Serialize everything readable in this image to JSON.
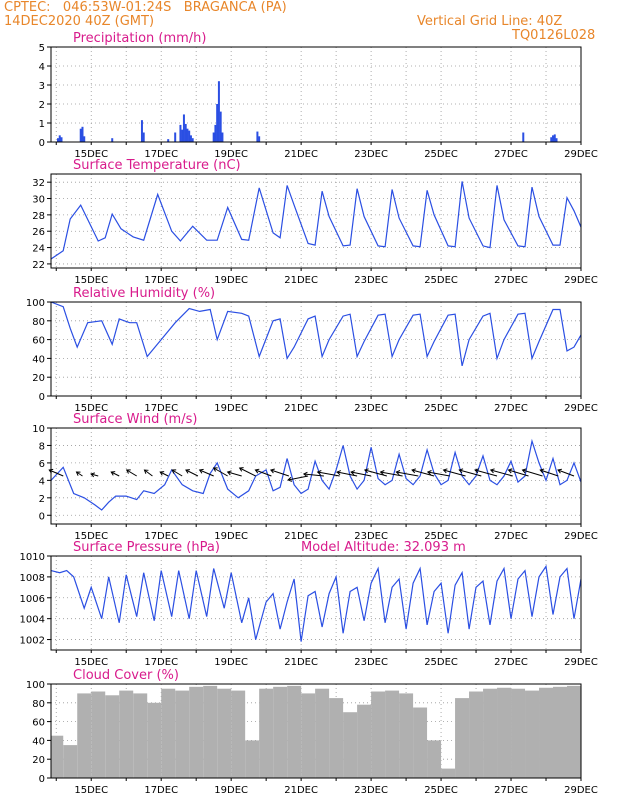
{
  "header": {
    "line1_left": "CPTEC:   046:53W-01:24S   BRAGANCA (PA)",
    "line2_left": "14DEC2020 40Z (GMT)",
    "line2_right": "Vertical Grid Line: 40Z",
    "line3_right": "TQ0126L028"
  },
  "colors": {
    "series": "#2b4fe3",
    "title": "#d81b8c",
    "header": "#e8862a",
    "cloud": "#b0b0b0"
  },
  "x_labels": [
    "15DEC",
    "17DEC",
    "19DEC",
    "21DEC",
    "23DEC",
    "25DEC",
    "27DEC",
    "29DEC"
  ],
  "chart_data": [
    {
      "type": "bar",
      "title": "Precipitation (mm/h)",
      "ylim": [
        0,
        5
      ],
      "yticks": [
        0,
        1,
        2,
        3,
        4,
        5
      ],
      "x": [
        14.05,
        14.1,
        14.15,
        14.7,
        14.75,
        14.8,
        15.6,
        16.45,
        16.5,
        17.2,
        17.4,
        17.55,
        17.6,
        17.65,
        17.7,
        17.75,
        17.8,
        17.85,
        17.9,
        18.5,
        18.55,
        18.6,
        18.65,
        18.7,
        18.75,
        19.75,
        19.8,
        27.35,
        28.15,
        28.2,
        28.25,
        28.3
      ],
      "values": [
        0.2,
        0.35,
        0.25,
        0.7,
        0.8,
        0.3,
        0.2,
        1.15,
        0.5,
        0.15,
        0.5,
        0.9,
        0.65,
        1.45,
        0.95,
        0.7,
        0.6,
        0.35,
        0.2,
        0.5,
        0.9,
        2.0,
        3.2,
        1.6,
        0.5,
        0.55,
        0.3,
        0.5,
        0.25,
        0.35,
        0.4,
        0.2
      ]
    },
    {
      "type": "line",
      "title": "Surface Temperature (nC)",
      "ylim": [
        21.5,
        33
      ],
      "yticks": [
        22,
        24,
        26,
        28,
        30,
        32
      ],
      "x": [
        13.85,
        14.2,
        14.4,
        14.7,
        15.2,
        15.4,
        15.6,
        15.85,
        16.2,
        16.5,
        16.9,
        17.3,
        17.55,
        17.9,
        18.3,
        18.6,
        18.9,
        19.3,
        19.5,
        19.8,
        20.2,
        20.4,
        20.6,
        20.8,
        21.2,
        21.4,
        21.6,
        21.8,
        22.2,
        22.4,
        22.6,
        22.8,
        23.2,
        23.4,
        23.6,
        23.8,
        24.2,
        24.4,
        24.6,
        24.8,
        25.2,
        25.4,
        25.6,
        25.8,
        26.2,
        26.4,
        26.6,
        26.8,
        27.2,
        27.4,
        27.6,
        27.8,
        28.2,
        28.4,
        28.6,
        28.8,
        29.0
      ],
      "values": [
        22.6,
        23.6,
        27.5,
        29.2,
        24.8,
        25.2,
        28.1,
        26.3,
        25.3,
        24.9,
        30.5,
        26.0,
        24.8,
        26.6,
        24.9,
        24.9,
        28.9,
        25.0,
        24.9,
        31.3,
        25.8,
        25.2,
        31.6,
        29.2,
        24.5,
        24.3,
        30.9,
        27.8,
        24.2,
        24.3,
        31.2,
        27.8,
        24.2,
        24.1,
        31.1,
        27.6,
        24.2,
        24.1,
        31.0,
        28.0,
        24.2,
        24.1,
        32.1,
        27.6,
        24.2,
        24.0,
        31.6,
        27.4,
        24.2,
        24.1,
        31.4,
        27.8,
        24.3,
        24.3,
        30.1,
        28.5,
        26.5
      ]
    },
    {
      "type": "line",
      "title": "Relative Humidity (%)",
      "ylim": [
        0,
        100
      ],
      "yticks": [
        0,
        20,
        40,
        60,
        80,
        100
      ],
      "x": [
        13.85,
        14.2,
        14.4,
        14.6,
        14.9,
        15.3,
        15.6,
        15.8,
        16.1,
        16.3,
        16.6,
        17.0,
        17.4,
        17.8,
        18.1,
        18.4,
        18.6,
        18.9,
        19.3,
        19.5,
        19.8,
        20.2,
        20.4,
        20.6,
        20.8,
        21.2,
        21.4,
        21.6,
        21.8,
        22.2,
        22.4,
        22.6,
        22.8,
        23.2,
        23.4,
        23.6,
        23.8,
        24.2,
        24.4,
        24.6,
        24.8,
        25.2,
        25.4,
        25.6,
        25.8,
        26.2,
        26.4,
        26.6,
        26.8,
        27.2,
        27.4,
        27.6,
        27.8,
        28.2,
        28.4,
        28.6,
        28.8,
        29.0
      ],
      "values": [
        100,
        95,
        72,
        52,
        78,
        80,
        55,
        82,
        78,
        78,
        42,
        60,
        78,
        93,
        90,
        92,
        60,
        90,
        88,
        85,
        42,
        80,
        82,
        40,
        52,
        82,
        85,
        42,
        60,
        85,
        87,
        42,
        58,
        86,
        87,
        42,
        60,
        86,
        87,
        42,
        58,
        86,
        87,
        32,
        60,
        85,
        88,
        40,
        60,
        87,
        88,
        40,
        58,
        92,
        92,
        48,
        52,
        65
      ]
    },
    {
      "type": "line",
      "title": "Surface Wind (m/s)",
      "ylim": [
        -1,
        10
      ],
      "yticks": [
        0,
        2,
        4,
        6,
        8,
        10
      ],
      "x": [
        13.85,
        14.2,
        14.5,
        14.8,
        15.1,
        15.3,
        15.5,
        15.7,
        16.0,
        16.3,
        16.5,
        16.8,
        17.1,
        17.3,
        17.6,
        17.9,
        18.2,
        18.4,
        18.6,
        18.9,
        19.2,
        19.5,
        19.7,
        20.0,
        20.2,
        20.4,
        20.6,
        20.8,
        21.0,
        21.2,
        21.4,
        21.6,
        21.8,
        22.0,
        22.2,
        22.4,
        22.6,
        22.8,
        23.0,
        23.2,
        23.4,
        23.6,
        23.8,
        24.0,
        24.2,
        24.4,
        24.6,
        24.8,
        25.0,
        25.2,
        25.4,
        25.6,
        25.8,
        26.0,
        26.2,
        26.4,
        26.6,
        26.8,
        27.0,
        27.2,
        27.4,
        27.6,
        27.8,
        28.0,
        28.2,
        28.4,
        28.6,
        28.8,
        29.0
      ],
      "values": [
        4,
        5.5,
        2.5,
        2.0,
        1.2,
        0.6,
        1.5,
        2.2,
        2.2,
        1.8,
        2.8,
        2.5,
        3.5,
        5.2,
        3.5,
        2.8,
        2.5,
        4.8,
        6.0,
        3.0,
        2.0,
        2.8,
        4.5,
        5.2,
        2.8,
        3.2,
        6.5,
        3.5,
        2.5,
        3.0,
        6.2,
        4.0,
        3.0,
        5.2,
        8.0,
        4.5,
        3.0,
        4.0,
        7.8,
        4.2,
        3.5,
        4.0,
        7.0,
        4.2,
        3.5,
        4.5,
        7.5,
        4.8,
        3.5,
        4.0,
        7.2,
        4.5,
        3.5,
        4.5,
        6.8,
        4.0,
        3.5,
        4.5,
        6.2,
        3.8,
        4.5,
        8.5,
        6.0,
        4.0,
        6.5,
        3.5,
        4.0,
        6.0,
        3.8
      ]
    },
    {
      "type": "line",
      "title": "Surface Pressure (hPa)",
      "subtitle": "Model Altitude: 32.093 m",
      "ylim": [
        1001,
        1010
      ],
      "yticks": [
        1002,
        1004,
        1006,
        1008,
        1010
      ],
      "x": [
        13.85,
        14.1,
        14.3,
        14.5,
        14.8,
        15.0,
        15.3,
        15.5,
        15.8,
        16.0,
        16.3,
        16.5,
        16.8,
        17.0,
        17.3,
        17.5,
        17.8,
        18.0,
        18.3,
        18.5,
        18.8,
        19.0,
        19.3,
        19.5,
        19.7,
        20.0,
        20.2,
        20.4,
        20.6,
        20.8,
        21.0,
        21.2,
        21.4,
        21.6,
        21.8,
        22.0,
        22.2,
        22.4,
        22.6,
        22.8,
        23.0,
        23.2,
        23.4,
        23.6,
        23.8,
        24.0,
        24.2,
        24.4,
        24.6,
        24.8,
        25.0,
        25.2,
        25.4,
        25.6,
        25.8,
        26.0,
        26.2,
        26.4,
        26.6,
        26.8,
        27.0,
        27.2,
        27.4,
        27.6,
        27.8,
        28.0,
        28.2,
        28.4,
        28.6,
        28.8,
        29.0
      ],
      "values": [
        1008.6,
        1008.4,
        1008.6,
        1008.0,
        1005.0,
        1007.0,
        1004.0,
        1008.0,
        1003.6,
        1008.2,
        1004.2,
        1008.4,
        1003.8,
        1008.6,
        1004.2,
        1008.6,
        1004.0,
        1008.6,
        1004.2,
        1008.8,
        1005.0,
        1008.4,
        1003.6,
        1006.0,
        1002.0,
        1005.6,
        1006.4,
        1003.0,
        1005.6,
        1007.8,
        1001.8,
        1006.2,
        1006.6,
        1003.2,
        1006.4,
        1008.0,
        1002.6,
        1006.6,
        1007.0,
        1003.8,
        1007.4,
        1008.8,
        1003.6,
        1007.0,
        1007.8,
        1003.0,
        1007.4,
        1008.8,
        1003.4,
        1006.6,
        1007.4,
        1002.6,
        1007.2,
        1008.4,
        1003.0,
        1007.0,
        1007.6,
        1003.4,
        1007.6,
        1008.8,
        1004.0,
        1007.8,
        1008.6,
        1004.2,
        1008.0,
        1009.0,
        1004.4,
        1008.0,
        1008.8,
        1004.0,
        1007.8
      ]
    },
    {
      "type": "bar",
      "title": "Cloud Cover (%)",
      "ylim": [
        0,
        100
      ],
      "yticks": [
        0,
        20,
        40,
        60,
        80,
        100
      ],
      "x": [
        14.0,
        14.4,
        14.8,
        15.2,
        15.6,
        16.0,
        16.4,
        16.8,
        17.2,
        17.6,
        18.0,
        18.4,
        18.8,
        19.2,
        19.6,
        20.0,
        20.4,
        20.8,
        21.2,
        21.6,
        22.0,
        22.4,
        22.8,
        23.2,
        23.6,
        24.0,
        24.4,
        24.8,
        25.2,
        25.6,
        26.0,
        26.4,
        26.8,
        27.2,
        27.6,
        28.0,
        28.4,
        28.8
      ],
      "values": [
        45,
        35,
        90,
        92,
        88,
        93,
        90,
        80,
        95,
        93,
        97,
        98,
        95,
        93,
        40,
        95,
        97,
        98,
        90,
        95,
        85,
        70,
        78,
        92,
        93,
        90,
        75,
        40,
        10,
        85,
        92,
        95,
        96,
        95,
        93,
        96,
        97,
        98
      ]
    }
  ],
  "wind_vectors": {
    "x": [
      14.2,
      14.75,
      15.2,
      15.8,
      16.3,
      16.75,
      17.2,
      17.6,
      18.05,
      18.5,
      18.9,
      19.3,
      19.7,
      20.15,
      20.65,
      21.2,
      21.65,
      22.1,
      22.6,
      23.0,
      23.45,
      23.9,
      24.35,
      24.8,
      25.25,
      25.7,
      26.15,
      26.6,
      27.05,
      27.5,
      27.9,
      28.35,
      28.8
    ],
    "u": [
      -3.5,
      -1.5,
      -1.8,
      -2.0,
      -2.5,
      -2.0,
      -2.0,
      -2.5,
      -3.0,
      -3.5,
      -3.5,
      -3.5,
      -4.0,
      -4.0,
      -4.5,
      -5.0,
      -5.0,
      -5.5,
      -5.0,
      -5.0,
      -5.5,
      -5.5,
      -5.5,
      -5.5,
      -5.5,
      -5.5,
      -5.5,
      -5.5,
      -5.5,
      -5.0,
      -5.0,
      -4.5,
      -4.0
    ],
    "v": [
      1.5,
      1.0,
      0.5,
      1.0,
      1.5,
      1.5,
      1.0,
      1.5,
      1.5,
      1.5,
      2.0,
      1.0,
      2.0,
      1.5,
      1.5,
      -1.0,
      0.5,
      1.0,
      1.0,
      1.0,
      1.5,
      1.0,
      1.0,
      1.5,
      1.0,
      1.5,
      1.5,
      1.5,
      1.5,
      1.5,
      1.5,
      1.5,
      1.5
    ]
  }
}
